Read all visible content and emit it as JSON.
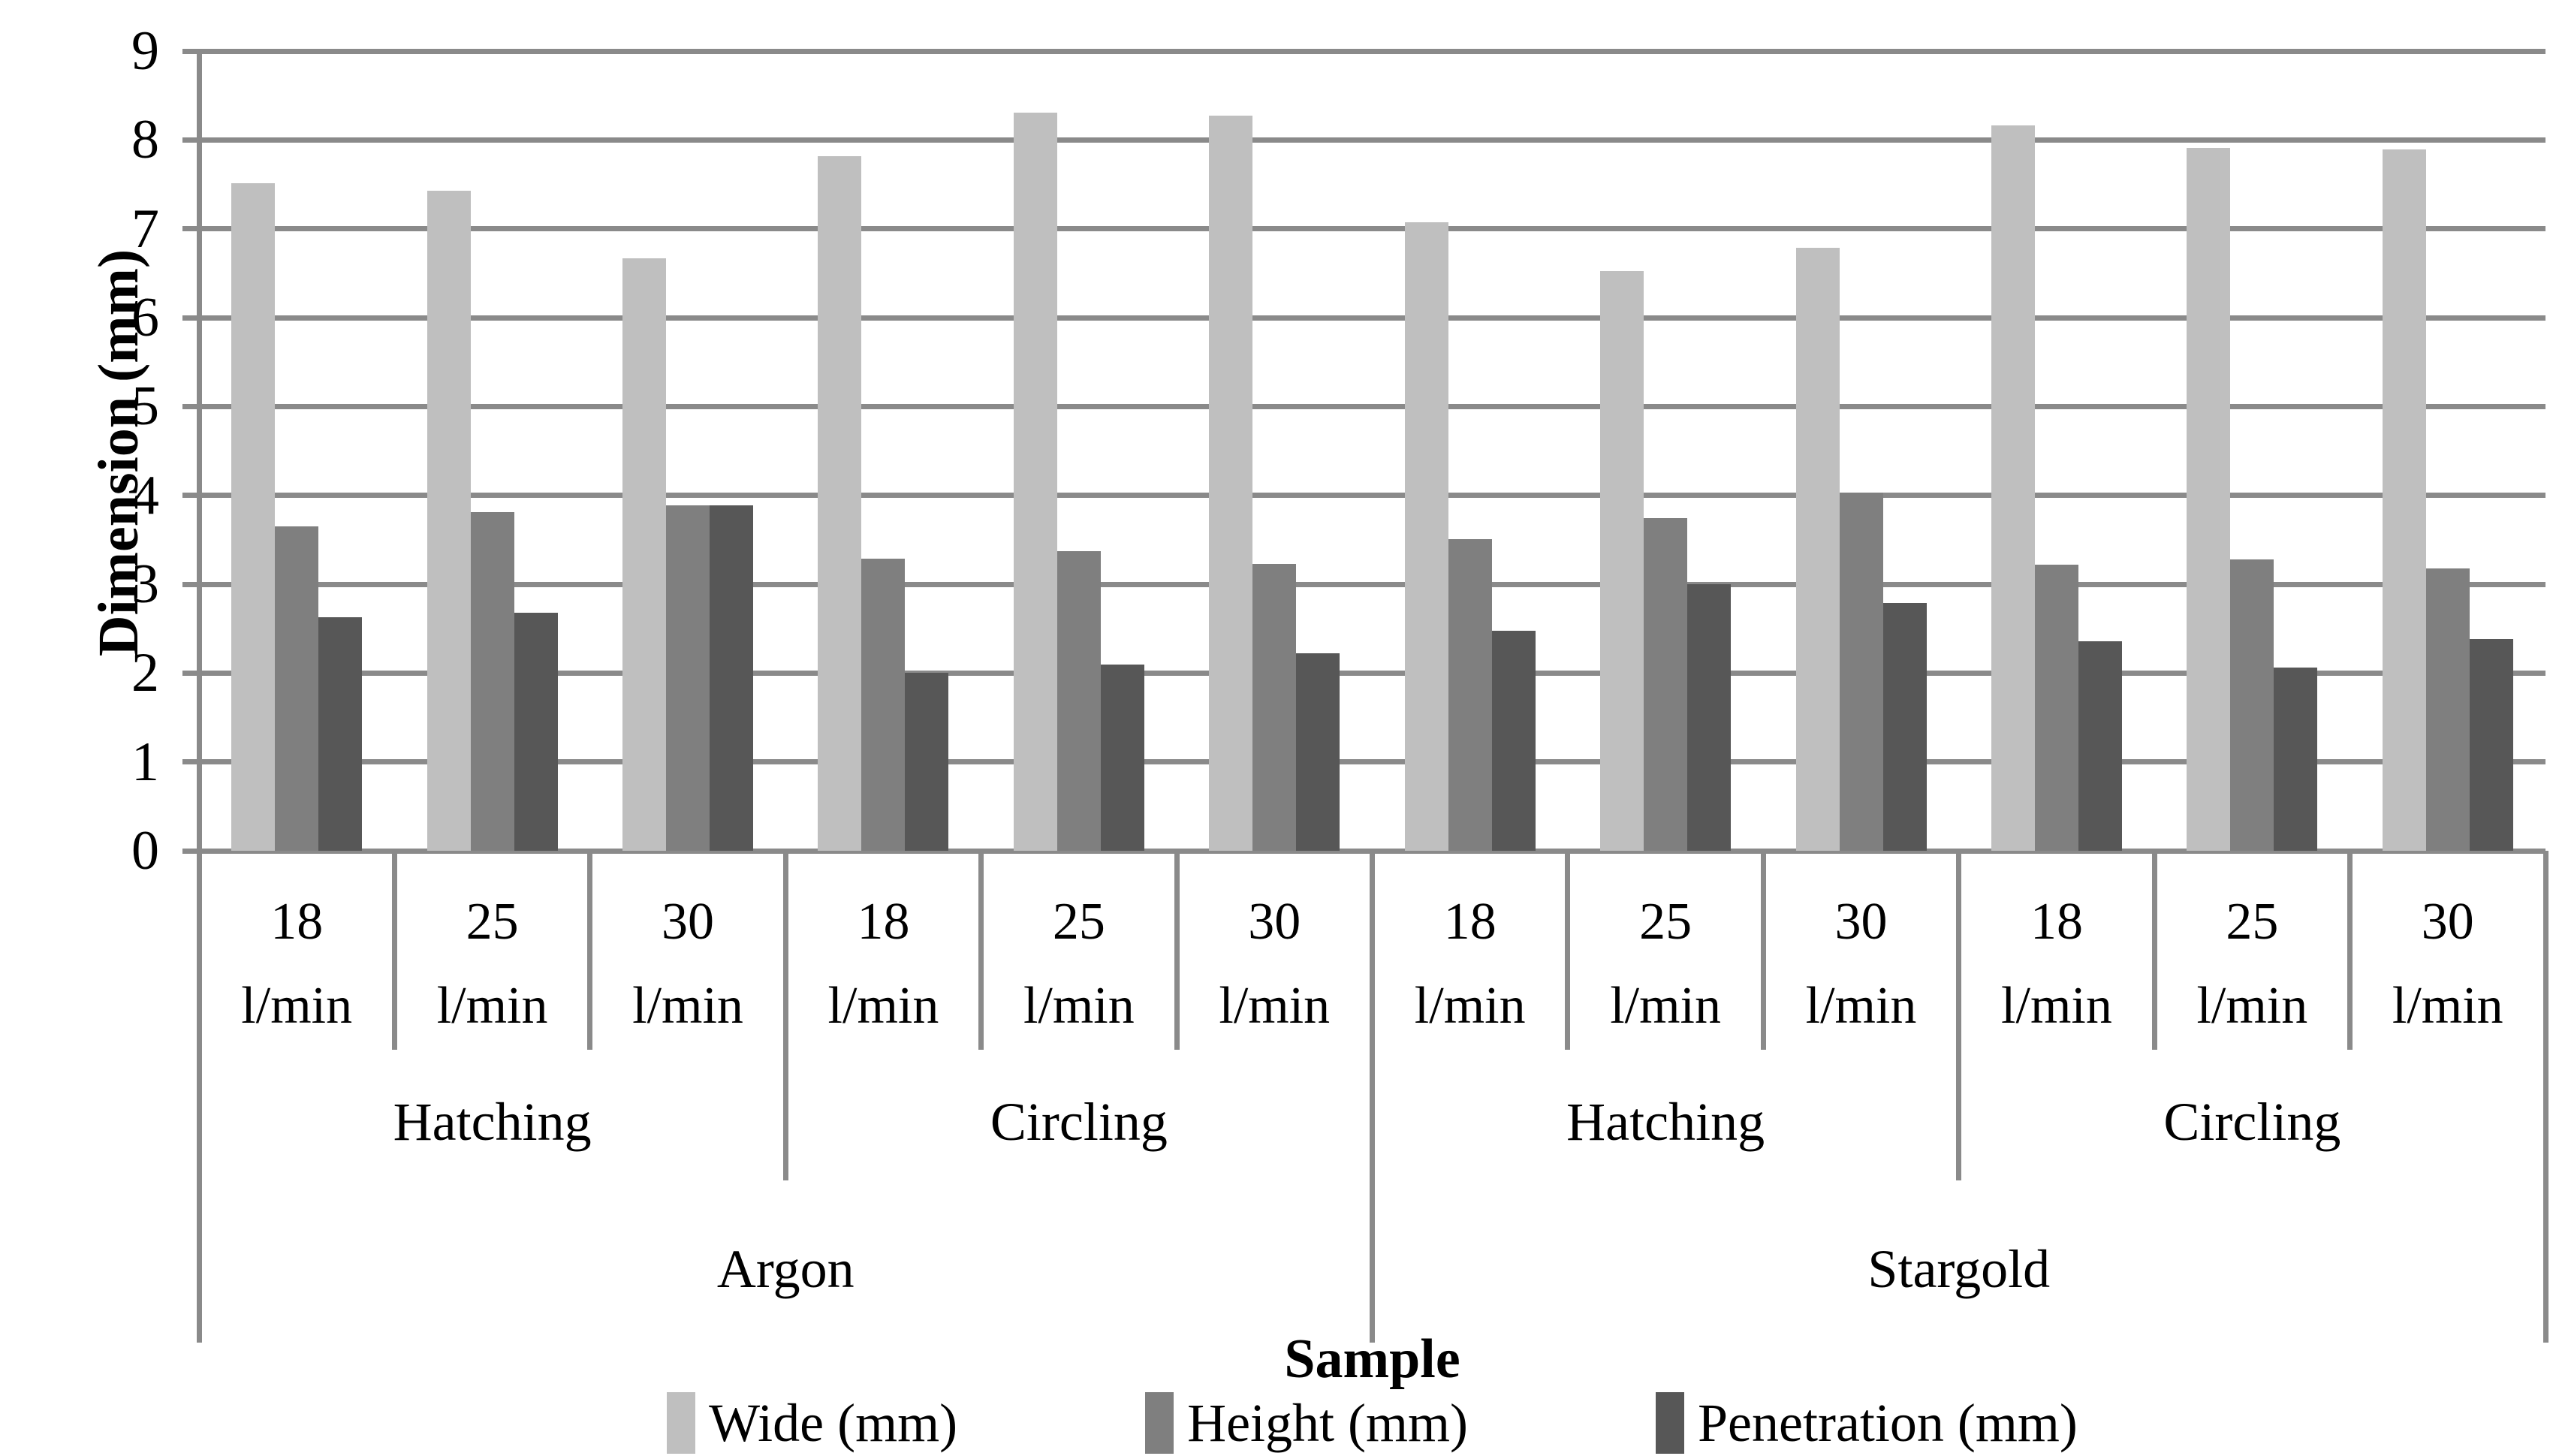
{
  "chart_data": {
    "type": "bar",
    "title": "",
    "ylabel": "Dimension (mm)",
    "xlabel": "Sample",
    "ylim": [
      0,
      9
    ],
    "yticks": [
      0,
      1,
      2,
      3,
      4,
      5,
      6,
      7,
      8,
      9
    ],
    "grid": "horizontal",
    "legend_position": "bottom",
    "categories": [
      {
        "flow": "18",
        "unit": "l/min"
      },
      {
        "flow": "25",
        "unit": "l/min"
      },
      {
        "flow": "30",
        "unit": "l/min"
      },
      {
        "flow": "18",
        "unit": "l/min"
      },
      {
        "flow": "25",
        "unit": "l/min"
      },
      {
        "flow": "30",
        "unit": "l/min"
      },
      {
        "flow": "18",
        "unit": "l/min"
      },
      {
        "flow": "25",
        "unit": "l/min"
      },
      {
        "flow": "30",
        "unit": "l/min"
      },
      {
        "flow": "18",
        "unit": "l/min"
      },
      {
        "flow": "25",
        "unit": "l/min"
      },
      {
        "flow": "30",
        "unit": "l/min"
      }
    ],
    "method_groups": [
      {
        "label": "Hatching",
        "span": 3
      },
      {
        "label": "Circling",
        "span": 3
      },
      {
        "label": "Hatching",
        "span": 3
      },
      {
        "label": "Circling",
        "span": 3
      }
    ],
    "gas_groups": [
      {
        "label": "Argon",
        "span": 6
      },
      {
        "label": "Stargold",
        "span": 6
      }
    ],
    "series": [
      {
        "name": "Wide (mm)",
        "color": "#bfbfbf",
        "values": [
          7.51,
          7.43,
          6.67,
          7.82,
          8.31,
          8.27,
          7.07,
          6.52,
          6.79,
          8.16,
          7.91,
          7.89
        ]
      },
      {
        "name": "Height (mm)",
        "color": "#7f7f7f",
        "values": [
          3.65,
          3.81,
          3.89,
          3.29,
          3.37,
          3.23,
          3.51,
          3.74,
          4.03,
          3.22,
          3.28,
          3.18
        ]
      },
      {
        "name": "Penetration (mm)",
        "color": "#575757",
        "values": [
          2.63,
          2.68,
          3.89,
          2.0,
          2.1,
          2.22,
          2.48,
          3.0,
          2.79,
          2.36,
          2.06,
          2.38
        ]
      }
    ],
    "line_color": "#8a8a8a"
  }
}
